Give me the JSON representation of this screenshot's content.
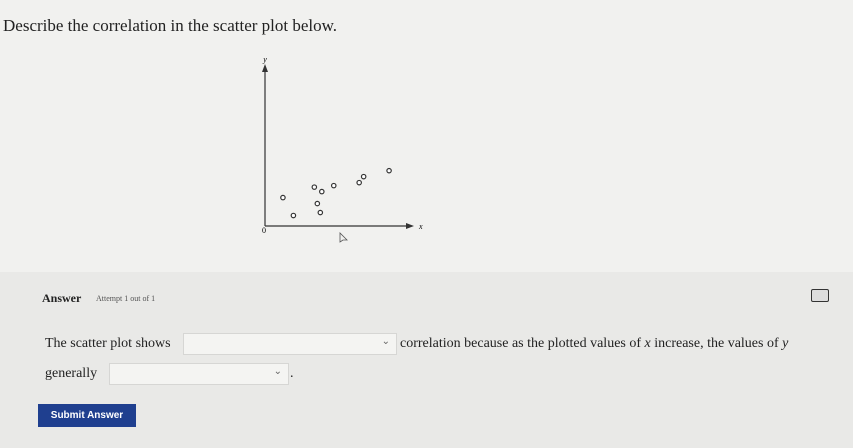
{
  "question": "Describe the correlation in the scatter plot below.",
  "chart_data": {
    "type": "scatter",
    "xlabel": "x",
    "ylabel": "y",
    "xlim": [
      0,
      9.7
    ],
    "ylim": [
      0,
      10.5
    ],
    "xticks": [
      0
    ],
    "x": [
      1.2,
      1.9,
      3.3,
      3.8,
      4.6,
      3.5,
      3.7,
      6.3,
      6.6,
      8.3
    ],
    "y": [
      1.9,
      0.7,
      2.6,
      2.3,
      2.7,
      1.5,
      0.9,
      2.9,
      3.3,
      3.7
    ],
    "color": "#333333"
  },
  "answer": {
    "heading": "Answer",
    "attempt": "Attempt 1 out of 1",
    "line1": {
      "before": "The scatter plot shows",
      "after": "correlation because as the plotted values of",
      "var1": "x",
      "middle": "increase, the values of",
      "var2": "y"
    },
    "line2": {
      "before": "generally",
      "after": "."
    },
    "submit": "Submit Answer"
  }
}
